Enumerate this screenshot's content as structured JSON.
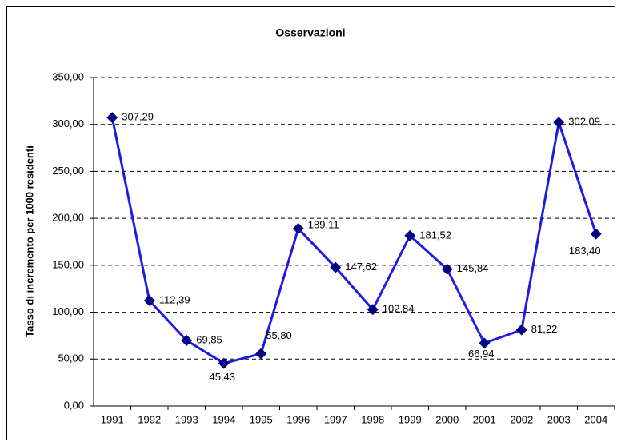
{
  "chart_data": {
    "type": "line",
    "title": "Osservazioni",
    "y_label": "Tasso di incremento per 1000 residenti",
    "categories": [
      "1991",
      "1992",
      "1993",
      "1994",
      "1995",
      "1996",
      "1997",
      "1998",
      "1999",
      "2000",
      "2001",
      "2002",
      "2003",
      "2004"
    ],
    "series": [
      {
        "name": "Osservazioni",
        "color": "#1c1ce0",
        "marker_color": "#000080",
        "values": [
          307.29,
          112.39,
          69.85,
          45.43,
          55.8,
          189.11,
          147.62,
          102.84,
          181.52,
          145.84,
          66.94,
          81.22,
          302.09,
          183.4
        ],
        "value_labels": [
          "307,29",
          "112,39",
          "69,85",
          "45,43",
          "55,80",
          "189,11",
          "147,62",
          "102,84",
          "181,52",
          "145,84",
          "66,94",
          "81,22",
          "302,09",
          "183,40"
        ]
      }
    ],
    "ylim": [
      0,
      350
    ],
    "yticks": [
      {
        "value": 0,
        "label": "0,00"
      },
      {
        "value": 50,
        "label": "50,00"
      },
      {
        "value": 100,
        "label": "100,00"
      },
      {
        "value": 150,
        "label": "150,00"
      },
      {
        "value": 200,
        "label": "200,00"
      },
      {
        "value": 250,
        "label": "250,00"
      },
      {
        "value": 300,
        "label": "300,00"
      },
      {
        "value": 350,
        "label": "350,00"
      }
    ],
    "grid": true
  }
}
